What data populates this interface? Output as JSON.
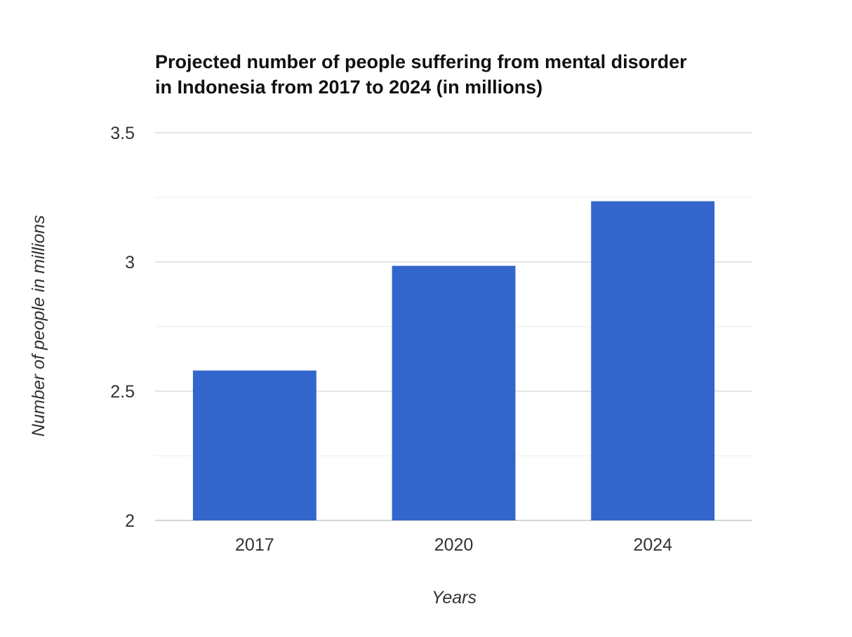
{
  "chart_data": {
    "type": "bar",
    "title_lines": [
      "Projected number of people suffering from mental disorder",
      "in Indonesia from 2017 to 2024 (in millions)"
    ],
    "xlabel": "Years",
    "ylabel": "Number of people in millions",
    "categories": [
      "2017",
      "2020",
      "2024"
    ],
    "values": [
      2.58,
      2.985,
      3.235
    ],
    "ylim": [
      2,
      3.5
    ],
    "y_ticks": [
      2,
      2.5,
      3,
      3.5
    ],
    "y_tick_labels": [
      "2",
      "2.5",
      "3",
      "3.5"
    ],
    "minor_gridlines": true,
    "grid": true,
    "bar_color": "#3366cc",
    "grid_color": "#cccccc",
    "minor_grid_color": "#ebebeb"
  }
}
